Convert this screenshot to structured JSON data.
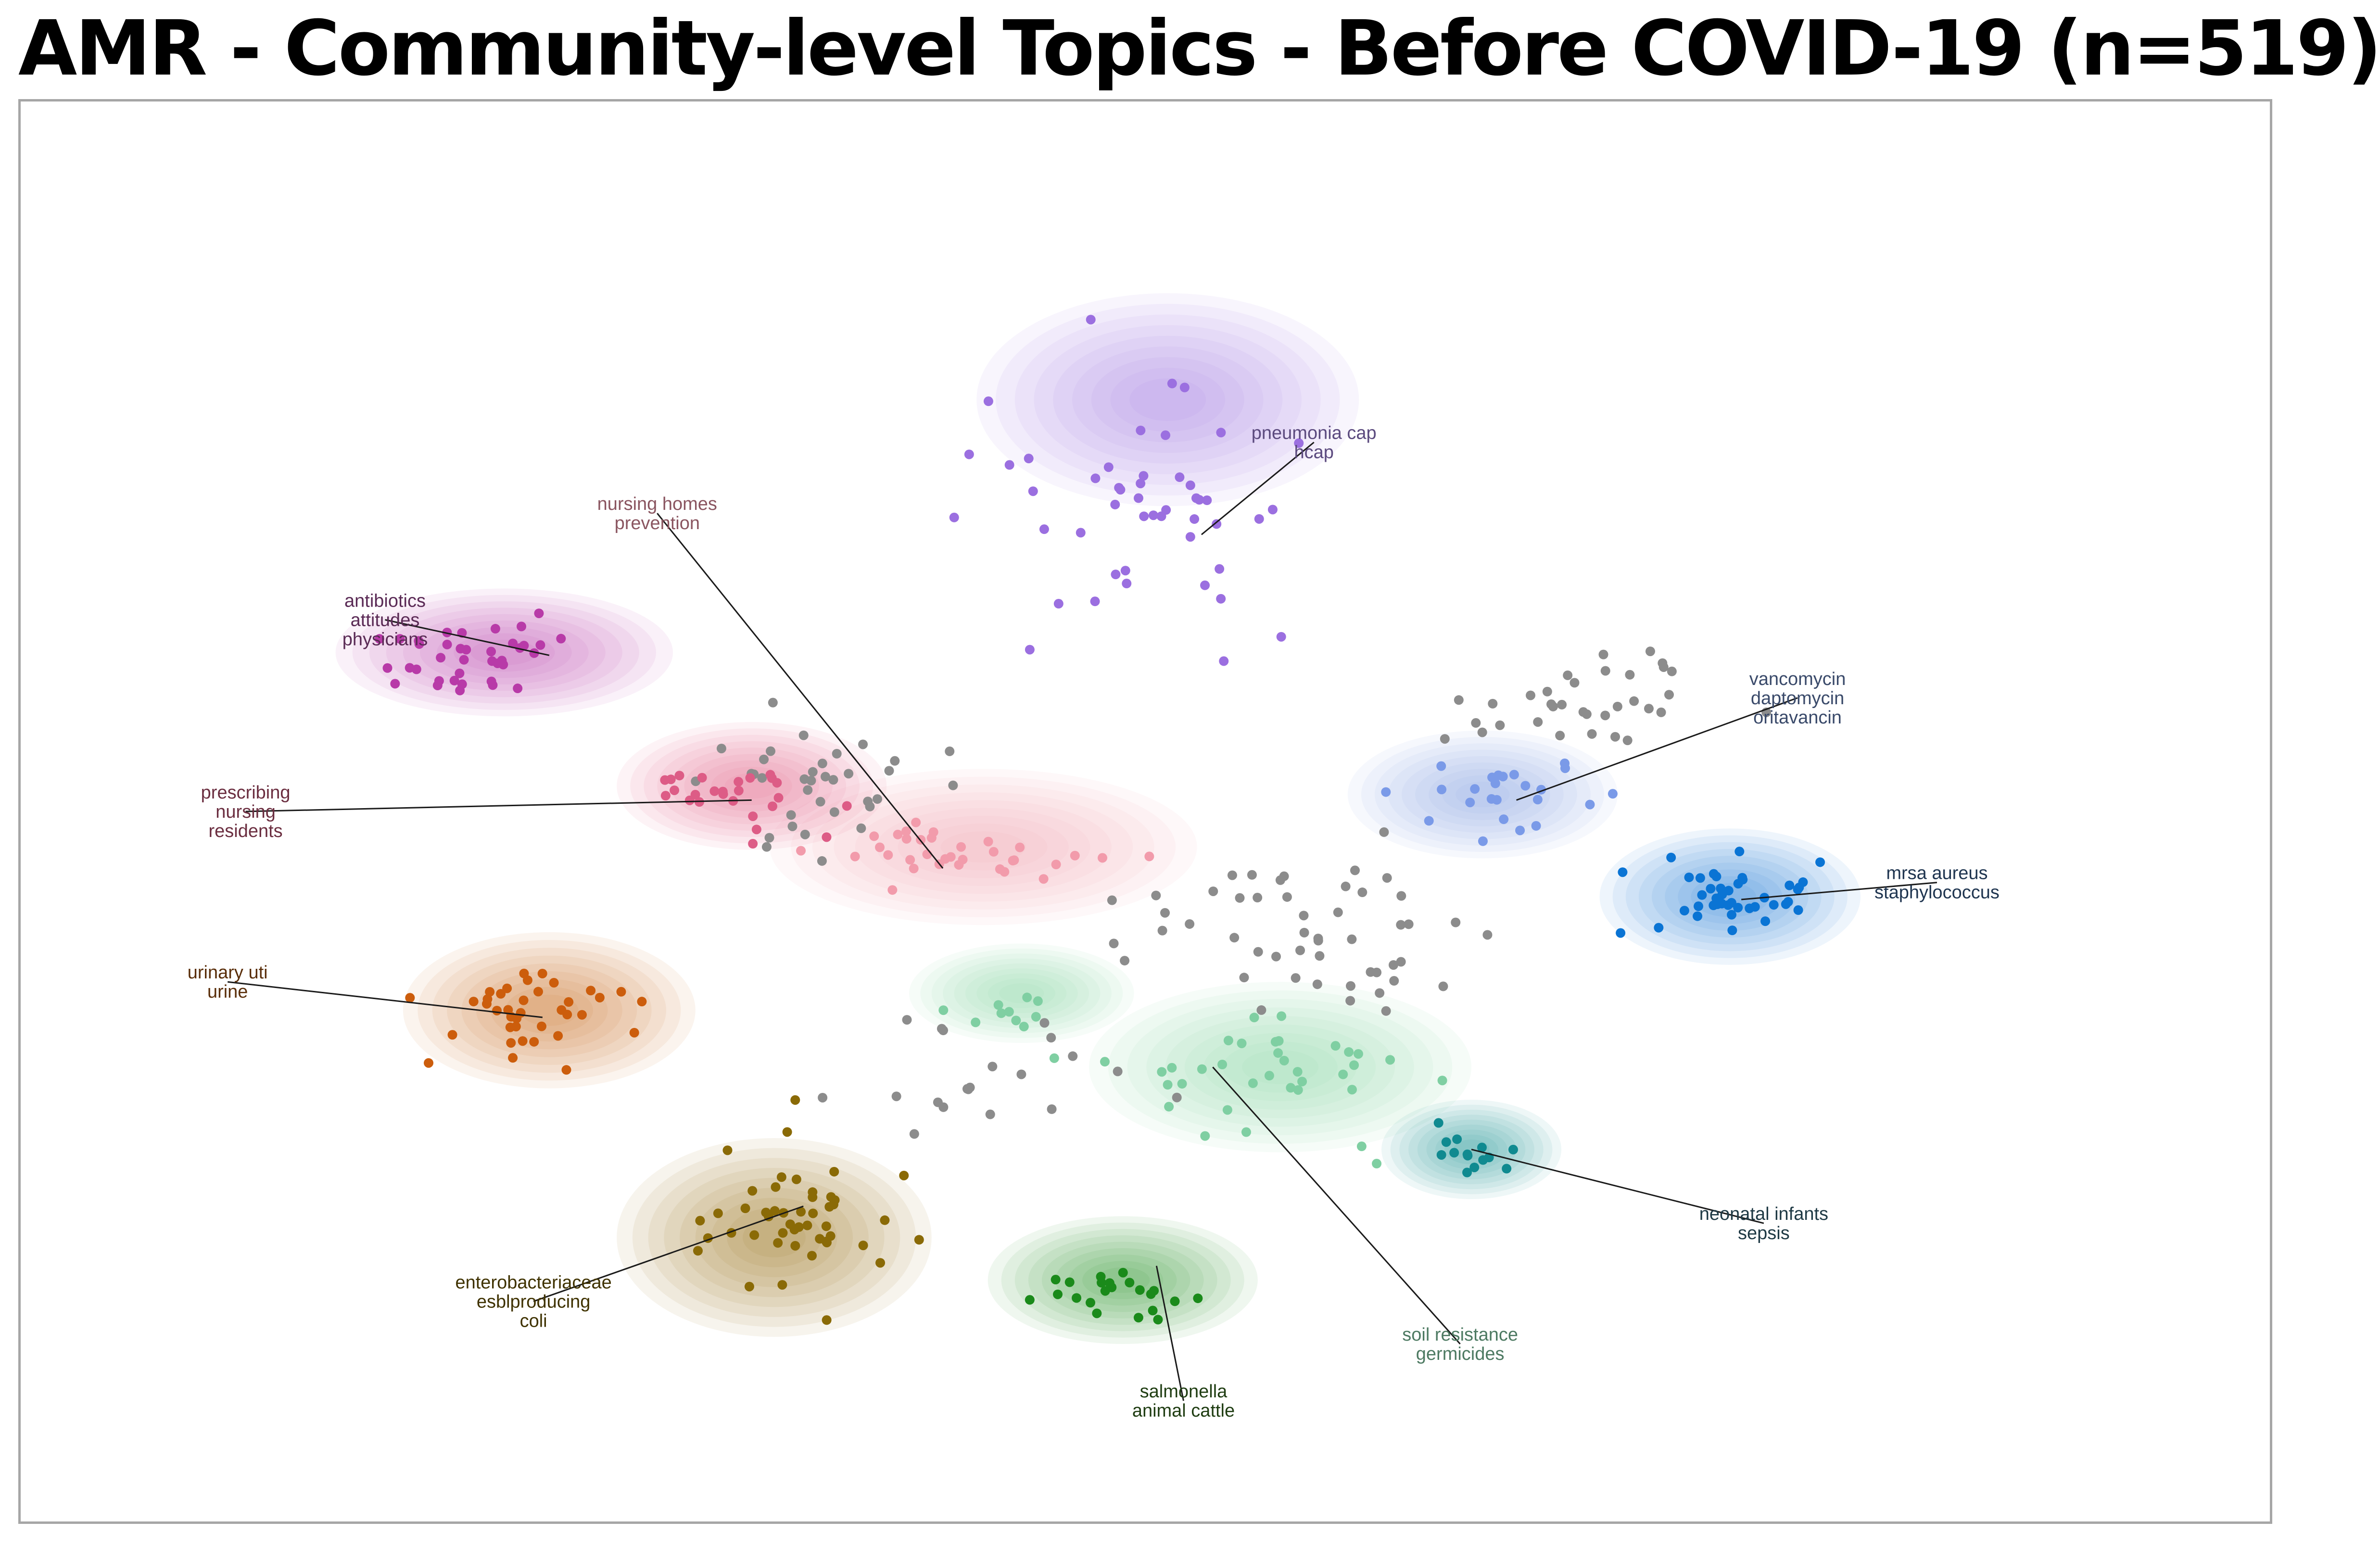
{
  "chart_data": {
    "type": "scatter",
    "title": "AMR - Community-level Topics  - Before COVID-19 (n=519)",
    "xlabel": "",
    "ylabel": "",
    "xlim": [
      0,
      1000
    ],
    "ylim": [
      0,
      1000
    ],
    "grid": false,
    "axes_visible": false,
    "outlier_color": "#8c8c8c",
    "clusters": [
      {
        "key": "pneumonia",
        "label": [
          "pneumonia cap",
          "hcap"
        ],
        "color": "#9b6fe0",
        "label_color": "#5b4a7e",
        "center": [
          505,
          710
        ],
        "spread": [
          55,
          80
        ],
        "density_center": [
          510,
          790
        ],
        "density_size": [
          85,
          75
        ],
        "label_pos": [
          575,
          760
        ],
        "anchor": [
          525,
          695
        ],
        "n": 48
      },
      {
        "key": "antibiotics",
        "label": [
          "antibiotics",
          "attitudes",
          "physicians"
        ],
        "color": "#b83aa8",
        "label_color": "#5a2a55",
        "center": [
          205,
          610
        ],
        "spread": [
          45,
          25
        ],
        "density_center": [
          215,
          612
        ],
        "density_size": [
          75,
          45
        ],
        "label_pos": [
          162,
          635
        ],
        "anchor": [
          235,
          610
        ],
        "n": 38
      },
      {
        "key": "nursing_homes",
        "label": [
          "nursing homes",
          "prevention"
        ],
        "color": "#f29bab",
        "label_color": "#8a5560",
        "center": [
          420,
          470
        ],
        "spread": [
          55,
          25
        ],
        "density_center": [
          428,
          475
        ],
        "density_size": [
          95,
          55
        ],
        "label_pos": [
          283,
          710
        ],
        "anchor": [
          410,
          460
        ],
        "n": 34
      },
      {
        "key": "prescribing",
        "label": [
          "prescribing",
          "nursing",
          "residents"
        ],
        "color": "#dd5c86",
        "label_color": "#6b2e40",
        "center": [
          325,
          510
        ],
        "spread": [
          38,
          22
        ],
        "density_center": [
          325,
          518
        ],
        "density_size": [
          60,
          45
        ],
        "label_pos": [
          100,
          500
        ],
        "anchor": [
          325,
          508
        ],
        "n": 26
      },
      {
        "key": "vancomycin",
        "label": [
          "vancomycin",
          "daptomycin",
          "oritavancin"
        ],
        "color": "#7a9ae8",
        "label_color": "#3a4a6a",
        "center": [
          655,
          510
        ],
        "spread": [
          35,
          25
        ],
        "density_center": [
          650,
          512
        ],
        "density_size": [
          60,
          45
        ],
        "label_pos": [
          790,
          580
        ],
        "anchor": [
          665,
          508
        ],
        "n": 24
      },
      {
        "key": "mrsa",
        "label": [
          "mrsa aureus",
          "staphylococcus"
        ],
        "color": "#0a74d4",
        "label_color": "#1f3550",
        "center": [
          760,
          440
        ],
        "spread": [
          38,
          28
        ],
        "density_center": [
          760,
          440
        ],
        "density_size": [
          58,
          48
        ],
        "label_pos": [
          852,
          450
        ],
        "anchor": [
          765,
          438
        ],
        "n": 42
      },
      {
        "key": "urinary",
        "label": [
          "urinary uti",
          "urine"
        ],
        "color": "#cc5d0c",
        "label_color": "#5a2e0a",
        "center": [
          230,
          360
        ],
        "spread": [
          40,
          30
        ],
        "density_center": [
          235,
          360
        ],
        "density_size": [
          65,
          55
        ],
        "label_pos": [
          92,
          380
        ],
        "anchor": [
          232,
          355
        ],
        "n": 38
      },
      {
        "key": "enterobacteriaceae",
        "label": [
          "enterobacteriaceae",
          "esblproducing",
          "coli"
        ],
        "color": "#8a6a06",
        "label_color": "#3f3200",
        "center": [
          345,
          210
        ],
        "spread": [
          42,
          45
        ],
        "density_center": [
          335,
          200
        ],
        "density_size": [
          70,
          70
        ],
        "label_pos": [
          228,
          155
        ],
        "anchor": [
          348,
          222
        ],
        "n": 48
      },
      {
        "key": "soil",
        "label": [
          "soil resistance",
          "germicides"
        ],
        "color": "#7fcfa2",
        "label_color": "#4d7a62",
        "center": [
          555,
          310
        ],
        "spread": [
          55,
          40
        ],
        "density_center": [
          560,
          320
        ],
        "density_size": [
          85,
          60
        ],
        "label_pos": [
          640,
          125
        ],
        "anchor": [
          530,
          320
        ],
        "n": 36
      },
      {
        "key": "neonatal",
        "label": [
          "neonatal infants",
          "sepsis"
        ],
        "color": "#108a90",
        "label_color": "#1f3a45",
        "center": [
          645,
          260
        ],
        "spread": [
          18,
          15
        ],
        "density_center": [
          645,
          262
        ],
        "density_size": [
          40,
          35
        ],
        "label_pos": [
          775,
          210
        ],
        "anchor": [
          645,
          262
        ],
        "n": 14
      },
      {
        "key": "salmonella",
        "label": [
          "salmonella",
          "animal cattle"
        ],
        "color": "#1a8a1a",
        "label_color": "#1f3d12",
        "center": [
          490,
          160
        ],
        "spread": [
          35,
          22
        ],
        "density_center": [
          490,
          170
        ],
        "density_size": [
          60,
          45
        ],
        "label_pos": [
          517,
          85
        ],
        "anchor": [
          505,
          180
        ],
        "n": 22
      },
      {
        "key": "blank",
        "label": [],
        "color": "#7fcfa2",
        "label_color": "#4d7a62",
        "center": [
          440,
          360
        ],
        "spread": [
          25,
          15
        ],
        "density_center": [
          445,
          372
        ],
        "density_size": [
          50,
          35
        ],
        "label_pos": [
          0,
          0
        ],
        "anchor": [
          0,
          0
        ],
        "n": 10
      }
    ],
    "outliers_n": 139,
    "outlier_regions": [
      {
        "center": [
          360,
          520
        ],
        "spread": [
          45,
          40
        ],
        "n": 35
      },
      {
        "center": [
          560,
          420
        ],
        "spread": [
          70,
          45
        ],
        "n": 35
      },
      {
        "center": [
          680,
          570
        ],
        "spread": [
          45,
          25
        ],
        "n": 22
      },
      {
        "center": [
          720,
          600
        ],
        "spread": [
          30,
          30
        ],
        "n": 12
      },
      {
        "center": [
          420,
          310
        ],
        "spread": [
          60,
          35
        ],
        "n": 20
      },
      {
        "center": [
          600,
          380
        ],
        "spread": [
          30,
          30
        ],
        "n": 15
      }
    ]
  }
}
